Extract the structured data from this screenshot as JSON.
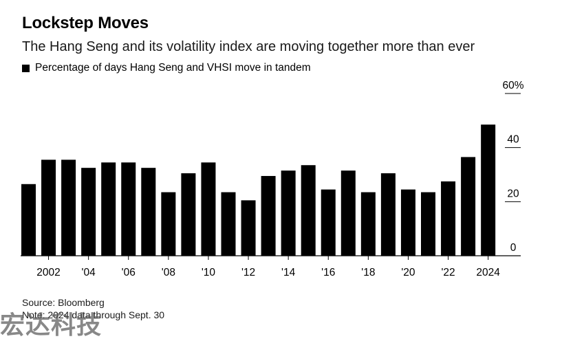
{
  "header": {
    "title": "Lockstep Moves",
    "subtitle": "The Hang Seng and its volatility index are moving together more than ever"
  },
  "footer": {
    "source": "Source: Bloomberg",
    "note": "Note: 2024 data through Sept. 30"
  },
  "watermark": {
    "text": "宏达科技"
  },
  "colors": {
    "bar": "#000000",
    "axis": "#000000",
    "text": "#000000"
  },
  "chart_data": {
    "type": "bar",
    "series": [
      {
        "name": "Percentage of days Hang Seng and VHSI move in tandem",
        "values": [
          26.5,
          35.5,
          35.5,
          32.5,
          34.5,
          34.5,
          32.5,
          23.5,
          30.5,
          34.5,
          23.5,
          20.5,
          29.5,
          31.5,
          33.5,
          24.5,
          31.5,
          23.5,
          30.5,
          24.5,
          23.5,
          27.5,
          36.5,
          48.5
        ]
      }
    ],
    "categories": [
      "2001",
      "2002",
      "2003",
      "2004",
      "2005",
      "2006",
      "2007",
      "2008",
      "2009",
      "2010",
      "2011",
      "2012",
      "2013",
      "2014",
      "2015",
      "2016",
      "2017",
      "2018",
      "2019",
      "2020",
      "2021",
      "2022",
      "2023",
      "2024"
    ],
    "x_tick_labels": [
      {
        "category": "2002",
        "label": "2002"
      },
      {
        "category": "2004",
        "label": "'04"
      },
      {
        "category": "2006",
        "label": "'06"
      },
      {
        "category": "2008",
        "label": "'08"
      },
      {
        "category": "2010",
        "label": "'10"
      },
      {
        "category": "2012",
        "label": "'12"
      },
      {
        "category": "2014",
        "label": "'14"
      },
      {
        "category": "2016",
        "label": "'16"
      },
      {
        "category": "2018",
        "label": "'18"
      },
      {
        "category": "2020",
        "label": "'20"
      },
      {
        "category": "2022",
        "label": "'22"
      },
      {
        "category": "2024",
        "label": "2024"
      }
    ],
    "y_ticks": [
      {
        "value": 0,
        "label": "0"
      },
      {
        "value": 20,
        "label": "20"
      },
      {
        "value": 40,
        "label": "40"
      },
      {
        "value": 60,
        "label": "60%"
      }
    ],
    "ylim": [
      0,
      60
    ],
    "grid": false,
    "legend_position": "top-left",
    "y_axis_position": "right"
  }
}
